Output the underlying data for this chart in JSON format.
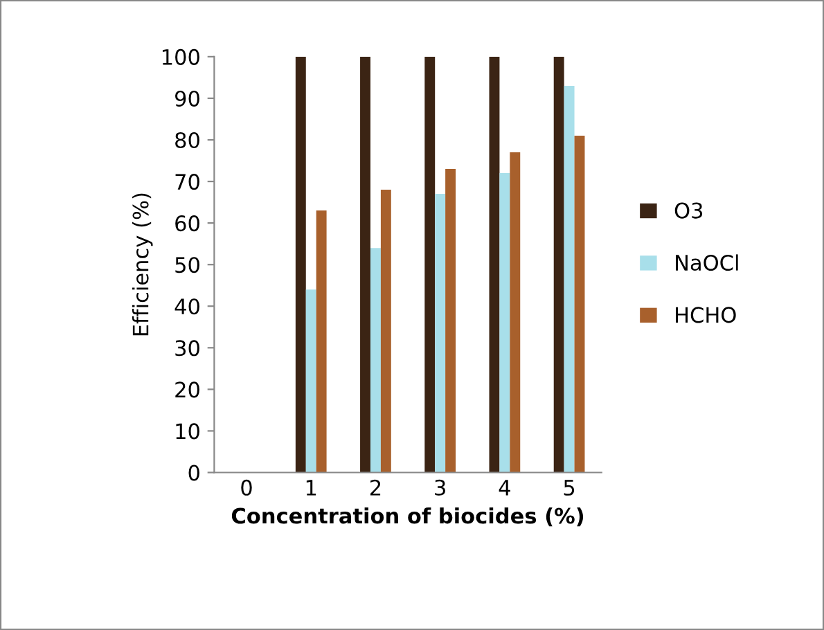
{
  "chart_data": {
    "type": "bar",
    "xlabel": "Concentration of biocides (%)",
    "ylabel": "Efficiency (%)",
    "categories": [
      "0",
      "1",
      "2",
      "3",
      "4",
      "5"
    ],
    "series": [
      {
        "name": "O3",
        "color": "#3b2414",
        "values": [
          0,
          100,
          100,
          100,
          100,
          100
        ]
      },
      {
        "name": "NaOCl",
        "color": "#a8dfea",
        "values": [
          0,
          44,
          54,
          67,
          72,
          93
        ]
      },
      {
        "name": "HCHO",
        "color": "#a8602c",
        "values": [
          0,
          63,
          68,
          73,
          77,
          81
        ]
      }
    ],
    "ylim": [
      0,
      100
    ],
    "yticks": [
      0,
      10,
      20,
      30,
      40,
      50,
      60,
      70,
      80,
      90,
      100
    ],
    "grid": false,
    "legend": "right"
  }
}
